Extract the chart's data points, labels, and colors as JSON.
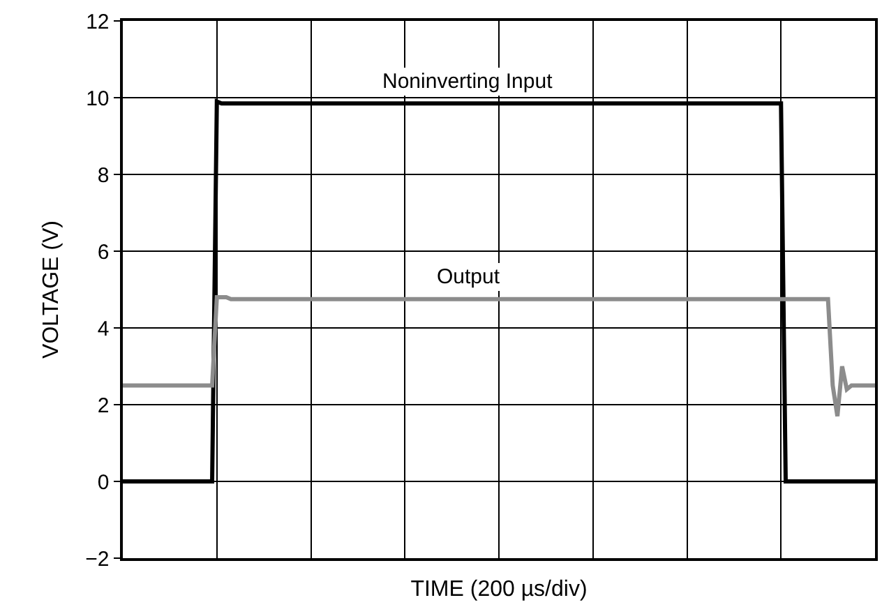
{
  "chart_data": {
    "type": "line",
    "xlabel": "TIME (200 µs/div)",
    "ylabel": "VOLTAGE (V)",
    "categories": [
      null,
      null,
      null,
      null,
      null,
      null,
      null,
      null,
      null,
      null,
      null,
      null,
      null,
      null,
      null,
      null,
      null,
      null,
      null,
      null,
      null,
      null,
      null,
      null,
      null,
      null,
      null,
      null,
      null,
      null,
      null,
      null,
      null,
      null,
      null,
      null,
      null,
      null,
      null,
      null,
      null,
      null,
      null,
      null,
      null,
      null,
      null,
      null,
      null,
      null,
      null,
      null,
      null,
      null,
      null,
      null,
      null,
      null,
      null,
      null,
      null,
      null,
      null,
      null,
      null,
      null,
      null,
      null,
      null,
      null,
      null,
      null,
      null,
      null,
      null,
      null,
      null,
      null,
      null,
      null,
      null,
      null,
      null,
      null,
      null,
      null,
      null,
      null,
      null,
      null,
      null,
      null,
      null,
      null,
      null,
      null,
      null,
      null,
      null,
      null,
      null,
      null,
      null,
      null,
      null,
      null,
      null,
      null,
      null,
      null,
      null,
      null,
      null,
      null,
      null,
      null,
      null,
      null,
      null,
      null,
      null,
      null,
      null,
      null,
      null,
      null,
      null,
      null,
      null,
      null,
      null,
      null,
      null,
      null,
      null,
      null,
      null,
      null,
      null,
      null,
      null,
      null,
      null,
      null,
      null,
      null,
      null,
      null,
      null,
      null,
      null,
      null,
      null,
      null,
      null,
      null,
      null,
      null,
      null,
      null,
      null
    ],
    "ylim": [
      -2,
      12
    ],
    "yticks": [
      {
        "value": -2,
        "label": "−2"
      },
      0,
      2,
      4,
      6,
      8,
      10,
      12
    ],
    "tick_labels": "y",
    "grid": true,
    "legend": false,
    "marker": "none",
    "line_style": "solid",
    "series": [
      {
        "name": "Noninverting Input",
        "color": "#000000",
        "values": [
          0,
          0,
          0,
          0,
          0,
          0,
          0,
          0,
          0,
          0,
          0,
          0,
          0,
          0,
          0,
          0,
          0,
          0,
          0,
          0,
          9.9,
          9.85,
          9.85,
          9.85,
          9.85,
          9.85,
          9.85,
          9.85,
          9.85,
          9.85,
          9.85,
          9.85,
          9.85,
          9.85,
          9.85,
          9.85,
          9.85,
          9.85,
          9.85,
          9.85,
          9.85,
          9.85,
          9.85,
          9.85,
          9.85,
          9.85,
          9.85,
          9.85,
          9.85,
          9.85,
          9.85,
          9.85,
          9.85,
          9.85,
          9.85,
          9.85,
          9.85,
          9.85,
          9.85,
          9.85,
          9.85,
          9.85,
          9.85,
          9.85,
          9.85,
          9.85,
          9.85,
          9.85,
          9.85,
          9.85,
          9.85,
          9.85,
          9.85,
          9.85,
          9.85,
          9.85,
          9.85,
          9.85,
          9.85,
          9.85,
          9.85,
          9.85,
          9.85,
          9.85,
          9.85,
          9.85,
          9.85,
          9.85,
          9.85,
          9.85,
          9.85,
          9.85,
          9.85,
          9.85,
          9.85,
          9.85,
          9.85,
          9.85,
          9.85,
          9.85,
          9.85,
          9.85,
          9.85,
          9.85,
          9.85,
          9.85,
          9.85,
          9.85,
          9.85,
          9.85,
          9.85,
          9.85,
          9.85,
          9.85,
          9.85,
          9.85,
          9.85,
          9.85,
          9.85,
          9.85,
          9.85,
          9.85,
          9.85,
          9.85,
          9.85,
          9.85,
          9.85,
          9.85,
          9.85,
          9.85,
          9.85,
          9.85,
          9.85,
          9.85,
          9.85,
          9.85,
          9.85,
          9.85,
          9.85,
          9.85,
          9.85,
          0,
          0,
          0,
          0,
          0,
          0,
          0,
          0,
          0,
          0,
          0,
          0,
          0,
          0,
          0,
          0,
          0,
          0,
          0,
          0
        ]
      },
      {
        "name": "Output",
        "color": "#8c8c8c",
        "values": [
          2.5,
          2.5,
          2.5,
          2.5,
          2.5,
          2.5,
          2.5,
          2.5,
          2.5,
          2.5,
          2.5,
          2.5,
          2.5,
          2.5,
          2.5,
          2.5,
          2.5,
          2.5,
          2.5,
          2.5,
          4.8,
          4.8,
          4.8,
          4.75,
          4.75,
          4.75,
          4.75,
          4.75,
          4.75,
          4.75,
          4.75,
          4.75,
          4.75,
          4.75,
          4.75,
          4.75,
          4.75,
          4.75,
          4.75,
          4.75,
          4.75,
          4.75,
          4.75,
          4.75,
          4.75,
          4.75,
          4.75,
          4.75,
          4.75,
          4.75,
          4.75,
          4.75,
          4.75,
          4.75,
          4.75,
          4.75,
          4.75,
          4.75,
          4.75,
          4.75,
          4.75,
          4.75,
          4.75,
          4.75,
          4.75,
          4.75,
          4.75,
          4.75,
          4.75,
          4.75,
          4.75,
          4.75,
          4.75,
          4.75,
          4.75,
          4.75,
          4.75,
          4.75,
          4.75,
          4.75,
          4.75,
          4.75,
          4.75,
          4.75,
          4.75,
          4.75,
          4.75,
          4.75,
          4.75,
          4.75,
          4.75,
          4.75,
          4.75,
          4.75,
          4.75,
          4.75,
          4.75,
          4.75,
          4.75,
          4.75,
          4.75,
          4.75,
          4.75,
          4.75,
          4.75,
          4.75,
          4.75,
          4.75,
          4.75,
          4.75,
          4.75,
          4.75,
          4.75,
          4.75,
          4.75,
          4.75,
          4.75,
          4.75,
          4.75,
          4.75,
          4.75,
          4.75,
          4.75,
          4.75,
          4.75,
          4.75,
          4.75,
          4.75,
          4.75,
          4.75,
          4.75,
          4.75,
          4.75,
          4.75,
          4.75,
          4.75,
          4.75,
          4.75,
          4.75,
          4.75,
          4.75,
          4.75,
          4.75,
          4.75,
          4.75,
          4.75,
          4.75,
          4.75,
          4.75,
          4.75,
          4.75,
          2.5,
          1.7,
          3.0,
          2.4,
          2.5,
          2.5,
          2.5,
          2.5,
          2.5,
          2.5
        ]
      }
    ]
  }
}
